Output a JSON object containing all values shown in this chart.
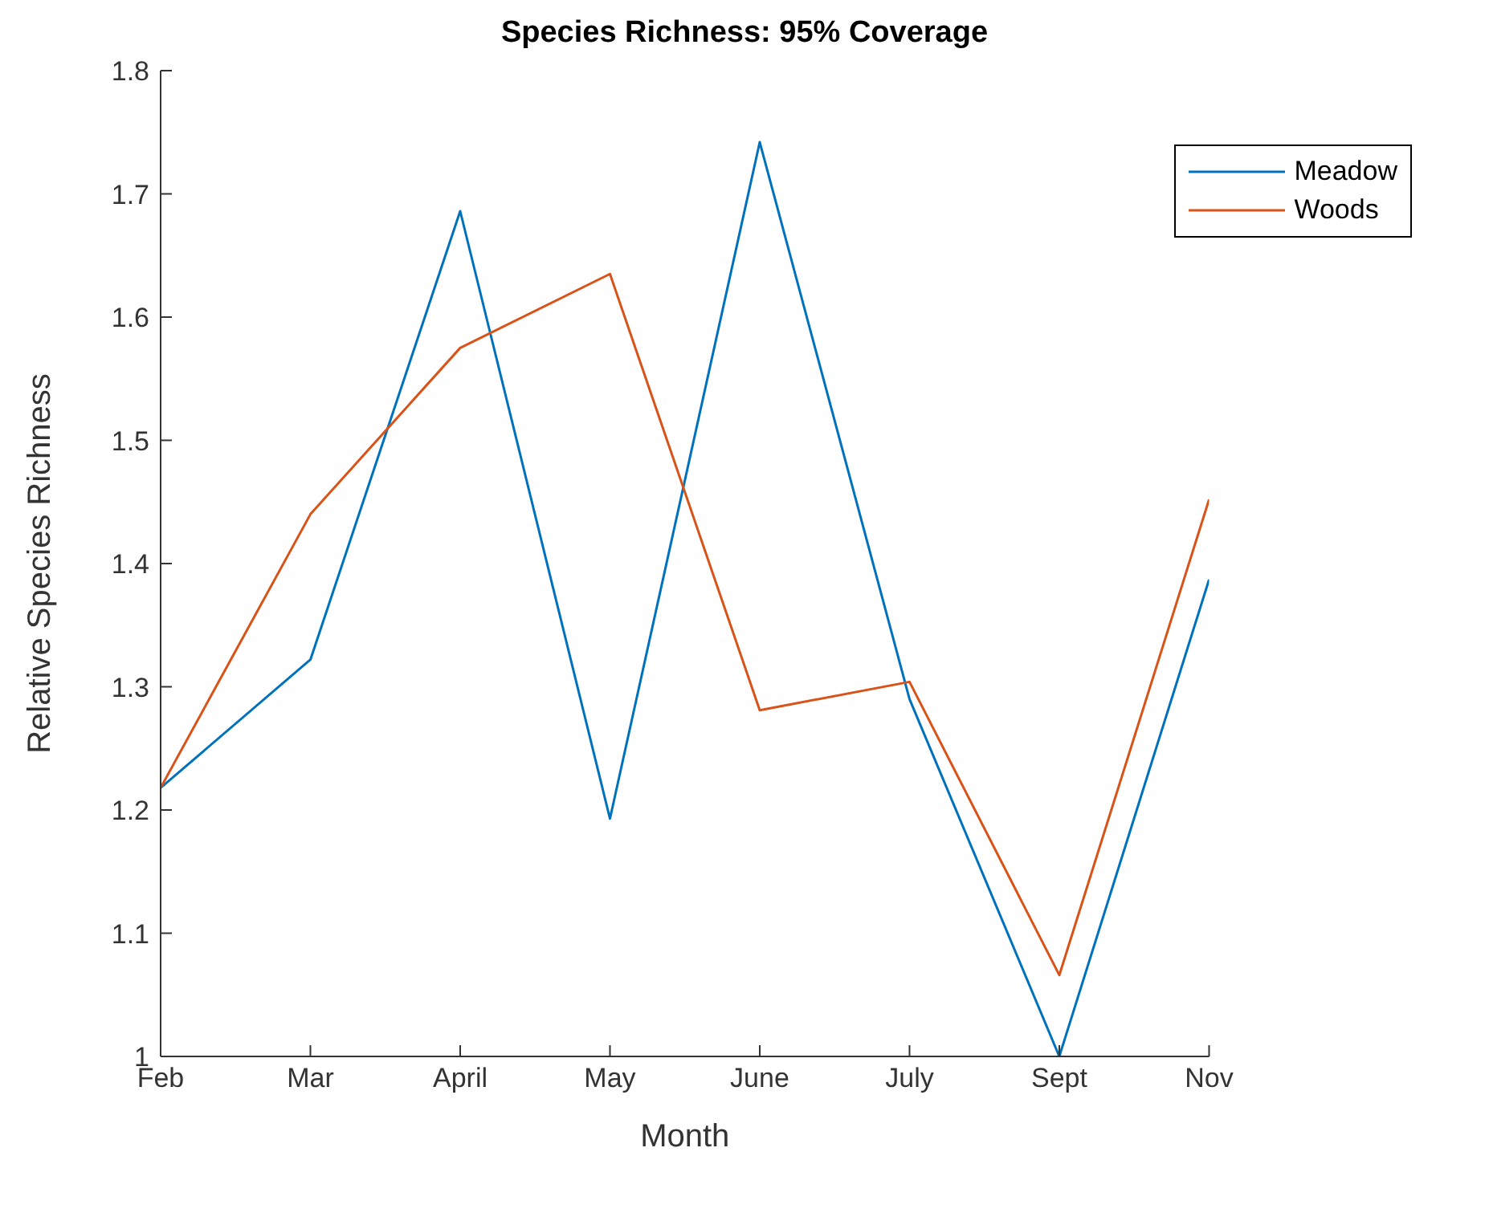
{
  "chart_data": {
    "type": "line",
    "title": "Species Richness: 95% Coverage",
    "xlabel": "Month",
    "ylabel": "Relative Species Richness",
    "categories": [
      "Feb",
      "Mar",
      "April",
      "May",
      "June",
      "July",
      "Sept",
      "Nov"
    ],
    "series": [
      {
        "name": "Meadow",
        "color": "#0072bd",
        "values": [
          1.218,
          1.322,
          1.686,
          1.193,
          1.742,
          1.29,
          1.0,
          1.387
        ]
      },
      {
        "name": "Woods",
        "color": "#d95319",
        "values": [
          1.218,
          1.44,
          1.575,
          1.635,
          1.281,
          1.304,
          1.066,
          1.452
        ]
      }
    ],
    "ylim": [
      1,
      1.8
    ],
    "yticks": [
      1,
      1.1,
      1.2,
      1.3,
      1.4,
      1.5,
      1.6,
      1.7,
      1.8
    ],
    "grid": false,
    "legend": "top right",
    "marker": "none",
    "line_style": "solid"
  }
}
